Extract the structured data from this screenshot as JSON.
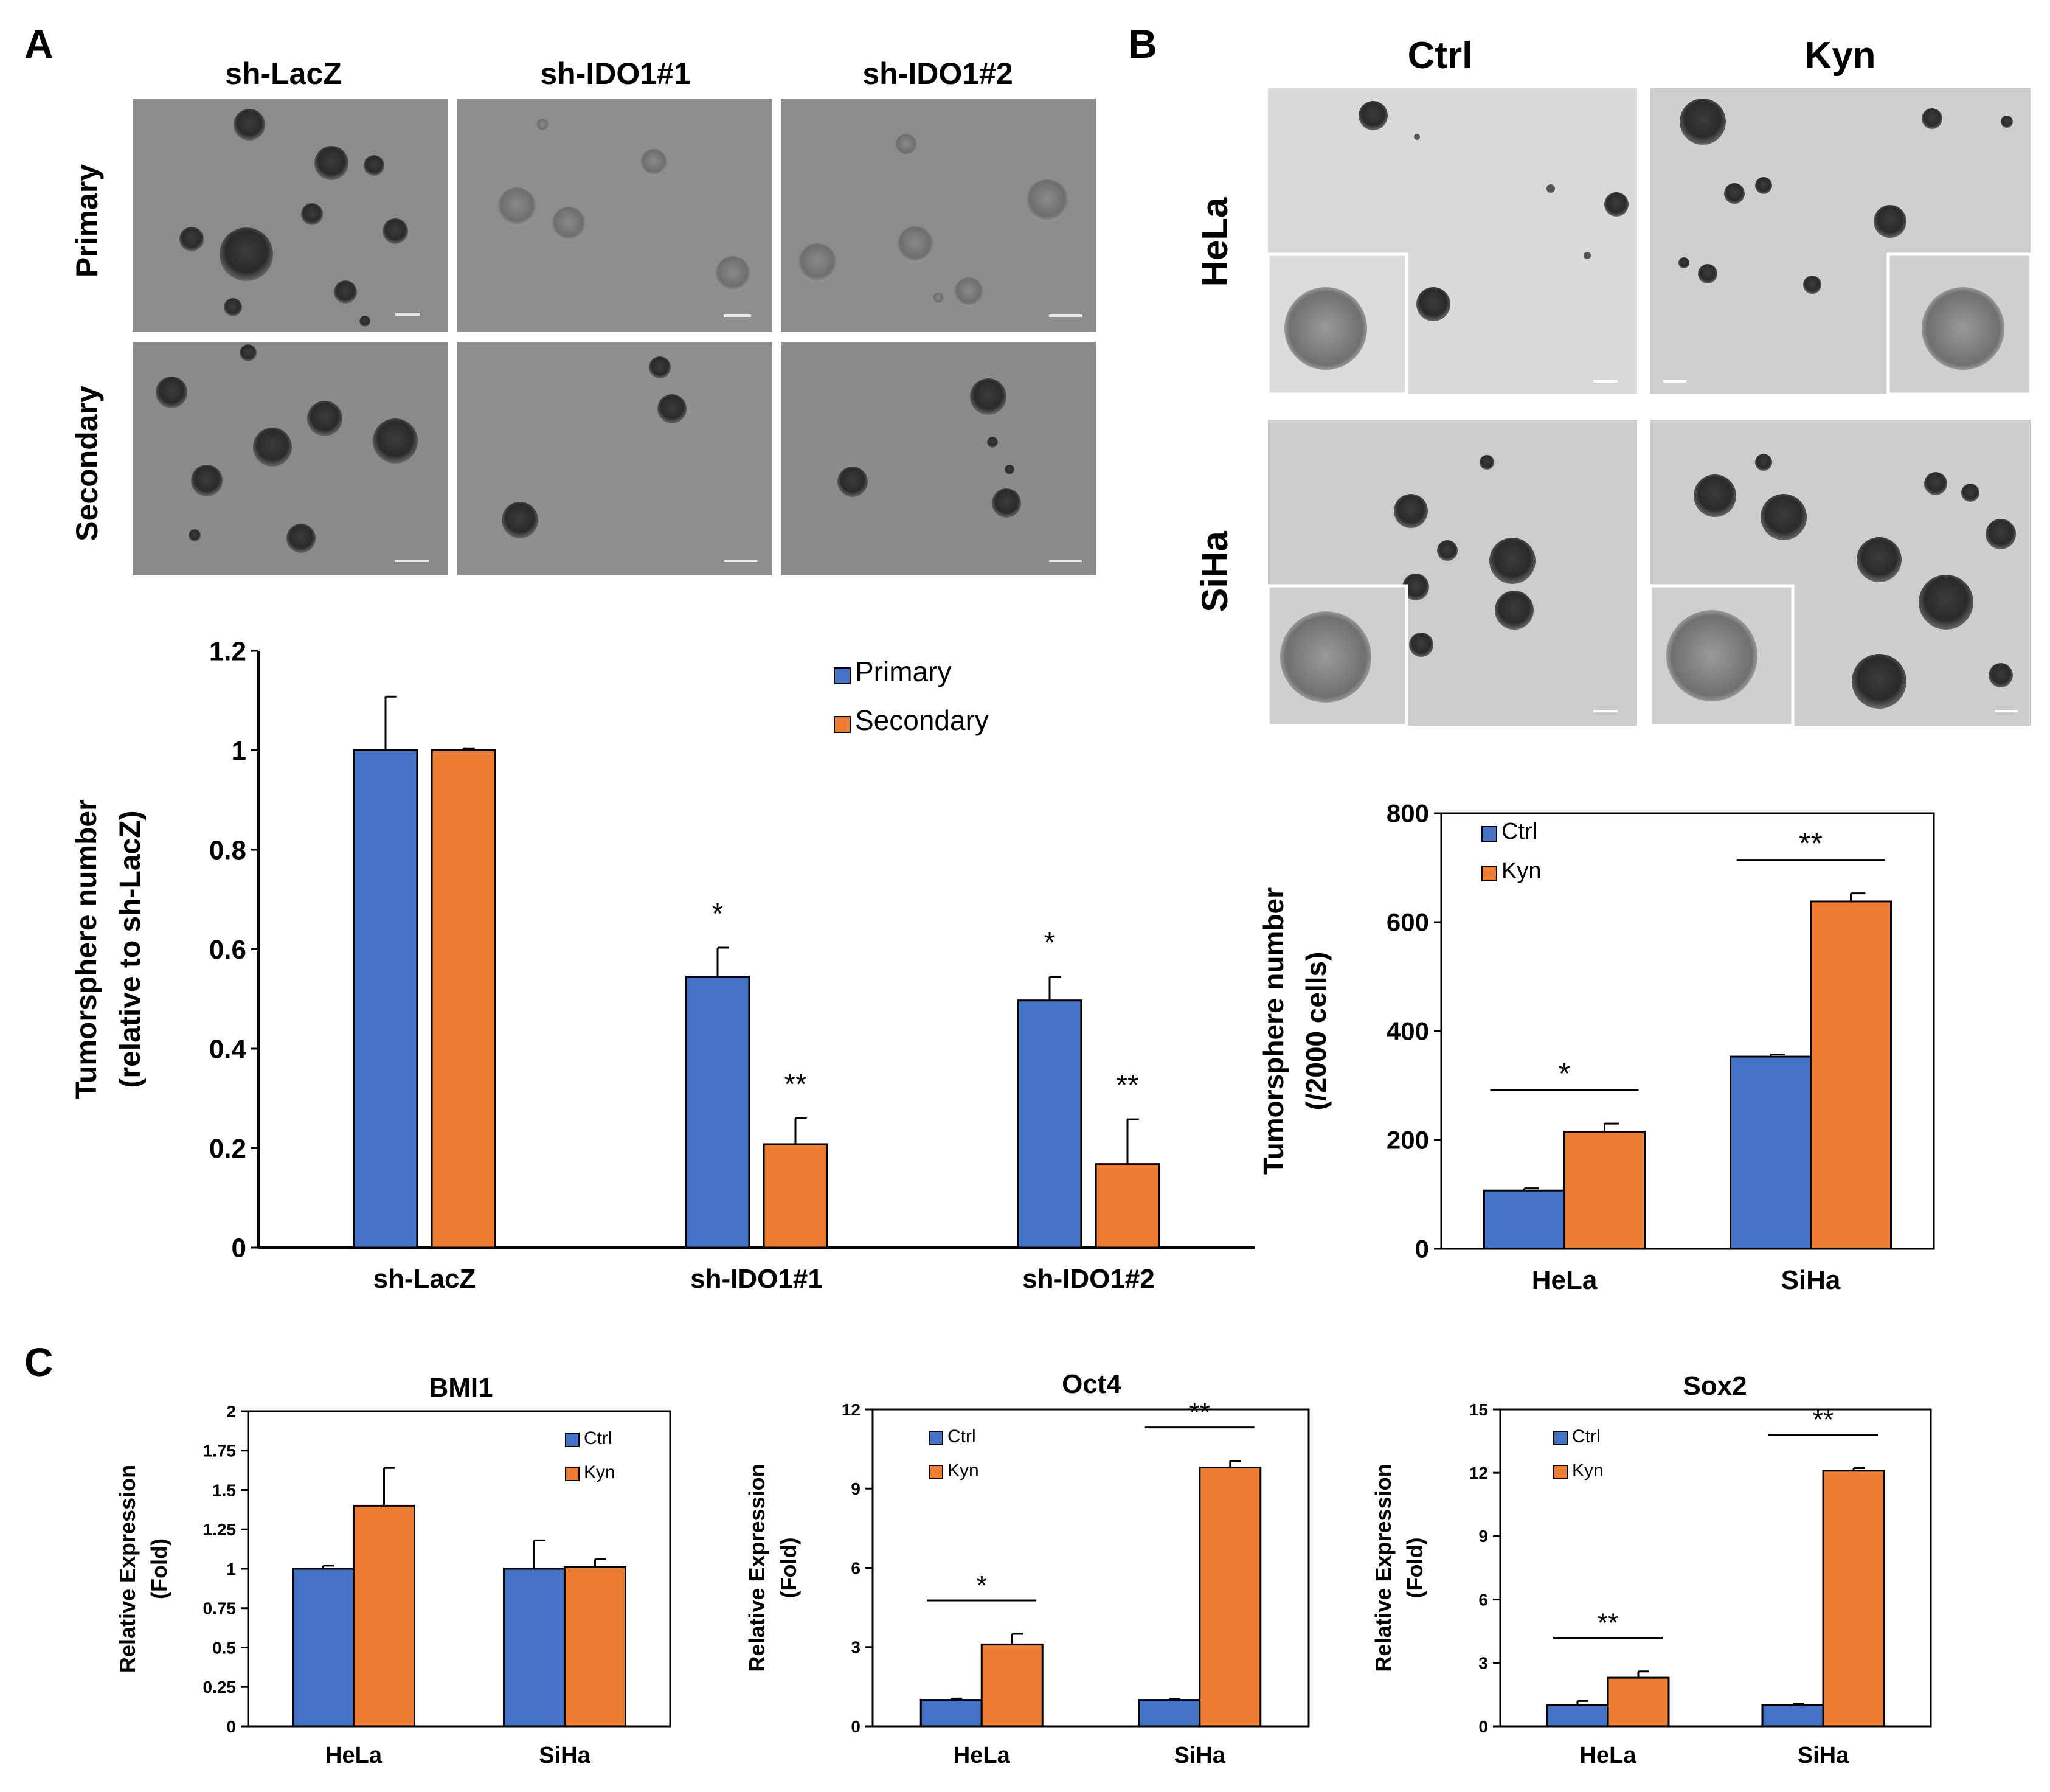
{
  "panels": {
    "A": {
      "label": "A",
      "columns": [
        "sh-LacZ",
        "sh-IDO1#1",
        "sh-IDO1#2"
      ],
      "rows": [
        "Primary",
        "Secondary"
      ]
    },
    "B": {
      "label": "B",
      "columns": [
        "Ctrl",
        "Kyn"
      ],
      "rows": [
        "HeLa",
        "SiHa"
      ]
    },
    "C": {
      "label": "C"
    }
  },
  "colors": {
    "primary": "#4472C4",
    "secondary": "#ED7D31"
  },
  "chart_data": [
    {
      "id": "A-chart",
      "type": "bar",
      "title": "",
      "ylabel_line1": "Tumorsphere number",
      "ylabel_line2": "(relative to sh-LacZ)",
      "categories": [
        "sh-LacZ",
        "sh-IDO1#1",
        "sh-IDO1#2"
      ],
      "ylim": [
        0,
        1.2
      ],
      "yticks": [
        "0",
        "0.2",
        "0.4",
        "0.6",
        "0.8",
        "1",
        "1.2"
      ],
      "series": [
        {
          "name": "Primary",
          "color": "#4472C4",
          "values": [
            1.0,
            0.545,
            0.497
          ],
          "errors": [
            0.108,
            0.058,
            0.048
          ],
          "sig": [
            "",
            "*",
            "*"
          ]
        },
        {
          "name": "Secondary",
          "color": "#ED7D31",
          "values": [
            1.0,
            0.208,
            0.168
          ],
          "errors": [
            0.004,
            0.052,
            0.09
          ],
          "sig": [
            "",
            "**",
            "**"
          ]
        }
      ],
      "legend": "top-right"
    },
    {
      "id": "B-chart",
      "type": "bar",
      "title": "",
      "ylabel_line1": "Tumorsphere number",
      "ylabel_line2": "(/2000 cells)",
      "categories": [
        "HeLa",
        "SiHa"
      ],
      "ylim": [
        0,
        800
      ],
      "yticks": [
        "0",
        "200",
        "400",
        "600",
        "800"
      ],
      "series": [
        {
          "name": "Ctrl",
          "color": "#4472C4",
          "values": [
            107,
            353
          ],
          "errors": [
            4,
            4
          ]
        },
        {
          "name": "Kyn",
          "color": "#ED7D31",
          "values": [
            215,
            638
          ],
          "errors": [
            15,
            15
          ]
        }
      ],
      "sig": [
        "*",
        "**"
      ],
      "legend": "top-left"
    },
    {
      "id": "C-bmi1",
      "type": "bar",
      "title": "BMI1",
      "ylabel_line1": "Relative Expression",
      "ylabel_line2": "(Fold)",
      "categories": [
        "HeLa",
        "SiHa"
      ],
      "ylim": [
        0,
        2
      ],
      "yticks": [
        "0",
        "0.25",
        "0.5",
        "0.75",
        "1",
        "1.25",
        "1.5",
        "1.75",
        "2"
      ],
      "series": [
        {
          "name": "Ctrl",
          "color": "#4472C4",
          "values": [
            1.0,
            1.0
          ],
          "errors": [
            0.02,
            0.18
          ]
        },
        {
          "name": "Kyn",
          "color": "#ED7D31",
          "values": [
            1.4,
            1.01
          ],
          "errors": [
            0.24,
            0.05
          ]
        }
      ],
      "sig": [
        "",
        ""
      ],
      "legend": "top-right"
    },
    {
      "id": "C-oct4",
      "type": "bar",
      "title": "Oct4",
      "ylabel_line1": "Relative Expression",
      "ylabel_line2": "(Fold)",
      "categories": [
        "HeLa",
        "SiHa"
      ],
      "ylim": [
        0,
        12
      ],
      "yticks": [
        "0",
        "3",
        "6",
        "9",
        "12"
      ],
      "series": [
        {
          "name": "Ctrl",
          "color": "#4472C4",
          "values": [
            1.0,
            1.0
          ],
          "errors": [
            0.05,
            0.03
          ]
        },
        {
          "name": "Kyn",
          "color": "#ED7D31",
          "values": [
            3.1,
            9.8
          ],
          "errors": [
            0.4,
            0.25
          ]
        }
      ],
      "sig": [
        "*",
        "**"
      ],
      "legend": "top-left"
    },
    {
      "id": "C-sox2",
      "type": "bar",
      "title": "Sox2",
      "ylabel_line1": "Relative Expression",
      "ylabel_line2": "(Fold)",
      "categories": [
        "HeLa",
        "SiHa"
      ],
      "ylim": [
        0,
        15
      ],
      "yticks": [
        "0",
        "3",
        "6",
        "9",
        "12",
        "15"
      ],
      "series": [
        {
          "name": "Ctrl",
          "color": "#4472C4",
          "values": [
            1.0,
            1.0
          ],
          "errors": [
            0.2,
            0.05
          ]
        },
        {
          "name": "Kyn",
          "color": "#ED7D31",
          "values": [
            2.3,
            12.1
          ],
          "errors": [
            0.3,
            0.12
          ]
        }
      ],
      "sig": [
        "**",
        "**"
      ],
      "legend": "top-left"
    }
  ]
}
